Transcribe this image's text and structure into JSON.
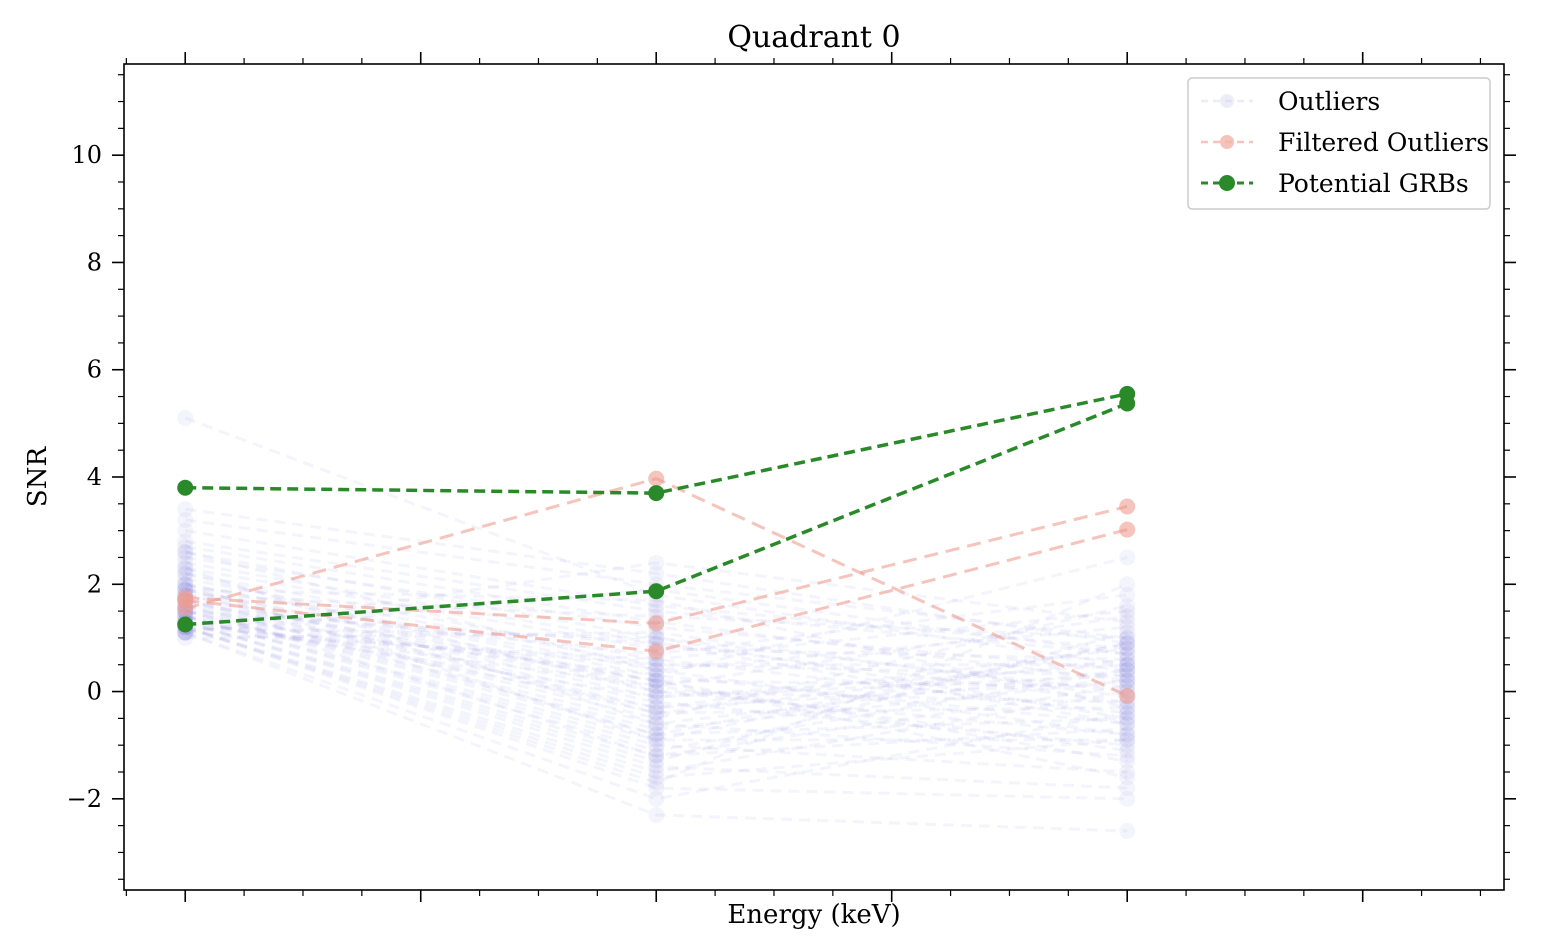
{
  "chart_data": {
    "type": "line",
    "title": "Quadrant 0",
    "xlabel": "Energy (keV)",
    "ylabel": "SNR",
    "ylim": [
      -3.7,
      11.7
    ],
    "yticks": [
      -2,
      0,
      2,
      4,
      6,
      8,
      10
    ],
    "ytick_labels": [
      "−2",
      "0",
      "2",
      "4",
      "6",
      "8",
      "10"
    ],
    "x": [
      0,
      1,
      2
    ],
    "xlim": [
      -0.13,
      2.8
    ],
    "grid": false,
    "legend": {
      "placement": "top-right",
      "entries": [
        {
          "label": "Outliers",
          "color": "#b9b9ec"
        },
        {
          "label": "Filtered Outliers",
          "color": "#f3b4a8"
        },
        {
          "label": "Potential GRBs",
          "color": "#2a8a2a"
        }
      ]
    },
    "outlier_color": "#8f8fdf",
    "filtered_color": "#ef9d90",
    "grb_color": "#2a8a2a",
    "outliers": [
      [
        5.1,
        1.8,
        0.5
      ],
      [
        3.4,
        2.2,
        0.9
      ],
      [
        3.2,
        2.0,
        1.0
      ],
      [
        3.0,
        1.6,
        0.8
      ],
      [
        2.8,
        1.5,
        0.7
      ],
      [
        2.7,
        1.3,
        0.2
      ],
      [
        2.6,
        1.0,
        0.0
      ],
      [
        2.5,
        1.2,
        0.4
      ],
      [
        2.4,
        0.9,
        -0.2
      ],
      [
        2.3,
        0.8,
        0.6
      ],
      [
        2.2,
        0.6,
        -0.4
      ],
      [
        2.1,
        0.5,
        0.3
      ],
      [
        2.0,
        0.4,
        1.2
      ],
      [
        2.0,
        0.3,
        -0.6
      ],
      [
        1.9,
        0.2,
        0.1
      ],
      [
        1.9,
        0.1,
        1.4
      ],
      [
        1.8,
        0.0,
        -0.8
      ],
      [
        1.8,
        -0.1,
        0.5
      ],
      [
        1.7,
        -0.2,
        -1.0
      ],
      [
        1.7,
        -0.3,
        0.8
      ],
      [
        1.6,
        -0.4,
        -0.3
      ],
      [
        1.6,
        -0.5,
        1.6
      ],
      [
        1.5,
        -0.6,
        -1.2
      ],
      [
        1.5,
        -0.7,
        0.2
      ],
      [
        1.5,
        -0.8,
        -0.5
      ],
      [
        1.4,
        -0.9,
        0.9
      ],
      [
        1.4,
        -1.0,
        -1.5
      ],
      [
        1.4,
        -1.1,
        0.4
      ],
      [
        1.3,
        -1.2,
        -0.7
      ],
      [
        1.3,
        -1.3,
        1.1
      ],
      [
        1.3,
        -1.4,
        -1.8
      ],
      [
        1.2,
        -1.5,
        0.0
      ],
      [
        1.2,
        -1.6,
        -0.9
      ],
      [
        1.2,
        -1.7,
        2.0
      ],
      [
        1.2,
        -1.8,
        -2.0
      ],
      [
        1.1,
        -2.0,
        -0.4
      ],
      [
        1.1,
        -2.3,
        -2.6
      ],
      [
        1.1,
        2.4,
        1.3
      ],
      [
        1.1,
        1.9,
        0.7
      ],
      [
        1.0,
        1.1,
        -0.1
      ],
      [
        1.6,
        0.7,
        1.8
      ],
      [
        1.7,
        0.2,
        -1.3
      ],
      [
        1.9,
        -0.4,
        0.6
      ],
      [
        2.2,
        0.0,
        -0.2
      ],
      [
        1.4,
        0.3,
        2.5
      ],
      [
        1.3,
        -0.1,
        0.3
      ],
      [
        1.5,
        0.9,
        -0.6
      ],
      [
        1.8,
        1.4,
        1.0
      ],
      [
        2.0,
        -0.9,
        -0.9
      ],
      [
        1.2,
        0.5,
        0.5
      ],
      [
        1.3,
        0.1,
        -1.1
      ],
      [
        1.6,
        -1.2,
        0.1
      ],
      [
        1.1,
        0.6,
        1.5
      ],
      [
        1.9,
        1.7,
        -0.3
      ],
      [
        2.3,
        -0.6,
        0.4
      ],
      [
        1.5,
        0.2,
        -1.6
      ],
      [
        1.7,
        -0.8,
        0.9
      ],
      [
        1.2,
        1.0,
        -0.5
      ],
      [
        1.4,
        -0.3,
        0.2
      ],
      [
        2.6,
        0.4,
        -0.8
      ]
    ],
    "series": [
      {
        "group": "filtered",
        "values": [
          1.55,
          3.97,
          -0.08
        ]
      },
      {
        "group": "filtered",
        "values": [
          1.75,
          1.27,
          3.45
        ]
      },
      {
        "group": "filtered",
        "values": [
          1.7,
          0.75,
          3.02
        ]
      },
      {
        "group": "grb",
        "values": [
          3.8,
          3.7,
          5.55
        ]
      },
      {
        "group": "grb",
        "values": [
          1.25,
          1.87,
          5.37
        ]
      }
    ]
  }
}
